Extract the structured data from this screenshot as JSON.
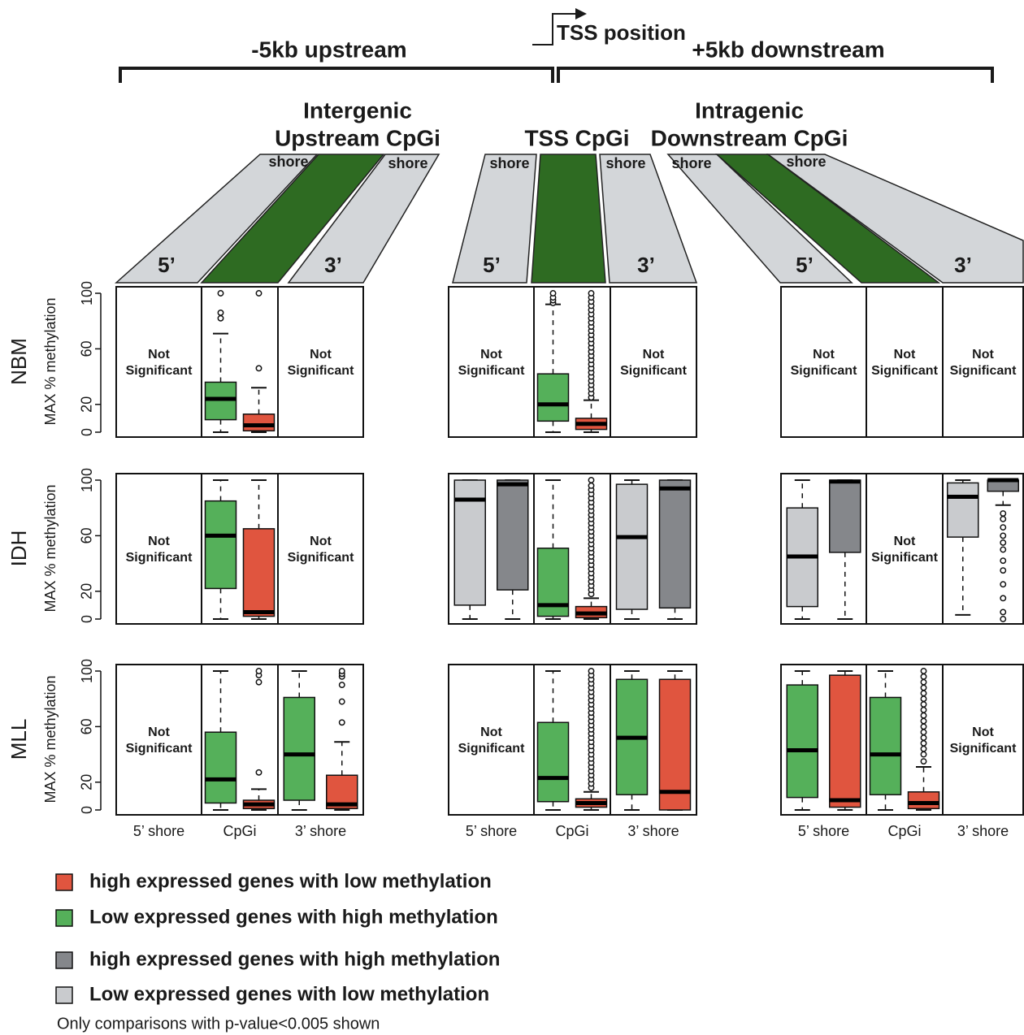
{
  "header": {
    "upstream": "-5kb upstream",
    "tss_position": "TSS position",
    "downstream": "+5kb downstream",
    "regions": [
      {
        "lines": [
          "Intergenic",
          "Upstream CpGi"
        ]
      },
      {
        "lines": [
          "TSS CpGi"
        ]
      },
      {
        "lines": [
          "Intragenic",
          "Downstream CpGi"
        ]
      }
    ],
    "shore": "shore",
    "five_prime": "5’",
    "three_prime": "3’"
  },
  "chart_data": {
    "type": "box",
    "ylabel": "MAX % methylation",
    "ylim": [
      0,
      100
    ],
    "yticks": [
      0,
      20,
      60,
      100
    ],
    "categories": [
      "5’ shore",
      "CpGi",
      "3’ shore"
    ],
    "not_significant": [
      "Not",
      "Significant"
    ],
    "series": [
      {
        "name": "high expressed genes with low methylation",
        "color": "#e0553f"
      },
      {
        "name": "Low expressed genes with high methylation",
        "color": "#55b05a"
      },
      {
        "name": "high expressed genes with high methylation",
        "color": "#85878b"
      },
      {
        "name": "Low expressed genes with low methylation",
        "color": "#c9cbce"
      }
    ],
    "rows": [
      {
        "name": "NBM",
        "panels": [
          {
            "sections": [
              null,
              {
                "boxes": [
                  {
                    "series": 1,
                    "stats": [
                      0,
                      9,
                      24,
                      36,
                      71
                    ],
                    "outliers": [
                      82,
                      86,
                      100
                    ]
                  },
                  {
                    "series": 0,
                    "stats": [
                      0,
                      1,
                      5,
                      13,
                      32
                    ],
                    "outliers": [
                      46,
                      100
                    ]
                  }
                ]
              },
              null
            ]
          },
          {
            "sections": [
              null,
              {
                "boxes": [
                  {
                    "series": 1,
                    "stats": [
                      0,
                      8,
                      20,
                      42,
                      92
                    ],
                    "outliers": [
                      93,
                      95,
                      97,
                      100
                    ]
                  },
                  {
                    "series": 0,
                    "stats": [
                      0,
                      2,
                      6,
                      10,
                      23
                    ],
                    "outliers": [
                      25,
                      28,
                      31,
                      34,
                      37,
                      40,
                      43,
                      46,
                      49,
                      52,
                      55,
                      58,
                      61,
                      64,
                      67,
                      70,
                      73,
                      76,
                      79,
                      82,
                      85,
                      88,
                      91,
                      94,
                      97,
                      100
                    ]
                  }
                ]
              },
              null
            ]
          },
          {
            "sections": [
              null,
              null,
              null
            ]
          }
        ]
      },
      {
        "name": "IDH",
        "panels": [
          {
            "sections": [
              null,
              {
                "boxes": [
                  {
                    "series": 1,
                    "stats": [
                      0,
                      22,
                      60,
                      85,
                      100
                    ],
                    "outliers": []
                  },
                  {
                    "series": 0,
                    "stats": [
                      0,
                      2,
                      5,
                      65,
                      100
                    ],
                    "outliers": []
                  }
                ]
              },
              null
            ]
          },
          {
            "sections": [
              {
                "boxes": [
                  {
                    "series": 3,
                    "stats": [
                      0,
                      10,
                      86,
                      100,
                      100
                    ],
                    "outliers": []
                  },
                  {
                    "series": 2,
                    "stats": [
                      0,
                      21,
                      97,
                      100,
                      100
                    ],
                    "outliers": []
                  }
                ]
              },
              {
                "boxes": [
                  {
                    "series": 1,
                    "stats": [
                      0,
                      2,
                      10,
                      51,
                      100
                    ],
                    "outliers": []
                  },
                  {
                    "series": 0,
                    "stats": [
                      0,
                      1,
                      4,
                      9,
                      15
                    ],
                    "outliers": [
                      18,
                      21,
                      24,
                      27,
                      30,
                      33,
                      36,
                      39,
                      42,
                      45,
                      48,
                      51,
                      54,
                      57,
                      60,
                      63,
                      66,
                      69,
                      72,
                      75,
                      78,
                      81,
                      84,
                      87,
                      90,
                      93,
                      96,
                      100
                    ]
                  }
                ]
              },
              {
                "boxes": [
                  {
                    "series": 3,
                    "stats": [
                      0,
                      7,
                      59,
                      97,
                      100
                    ],
                    "outliers": []
                  },
                  {
                    "series": 2,
                    "stats": [
                      0,
                      8,
                      94,
                      100,
                      100
                    ],
                    "outliers": []
                  }
                ]
              }
            ]
          },
          {
            "sections": [
              {
                "boxes": [
                  {
                    "series": 3,
                    "stats": [
                      0,
                      9,
                      45,
                      80,
                      100
                    ],
                    "outliers": []
                  },
                  {
                    "series": 2,
                    "stats": [
                      0,
                      48,
                      99,
                      100,
                      100
                    ],
                    "outliers": []
                  }
                ]
              },
              null,
              {
                "boxes": [
                  {
                    "series": 3,
                    "stats": [
                      3,
                      59,
                      88,
                      98,
                      100
                    ],
                    "outliers": []
                  },
                  {
                    "series": 2,
                    "stats": [
                      82,
                      92,
                      100,
                      100,
                      100
                    ],
                    "outliers": [
                      76,
                      72,
                      66,
                      60,
                      55,
                      50,
                      42,
                      35,
                      25,
                      15,
                      5,
                      0
                    ]
                  }
                ]
              }
            ]
          }
        ]
      },
      {
        "name": "MLL",
        "panels": [
          {
            "sections": [
              null,
              {
                "boxes": [
                  {
                    "series": 1,
                    "stats": [
                      0,
                      5,
                      22,
                      56,
                      100
                    ],
                    "outliers": []
                  },
                  {
                    "series": 0,
                    "stats": [
                      0,
                      1,
                      4,
                      7,
                      15
                    ],
                    "outliers": [
                      27,
                      92,
                      97,
                      100
                    ]
                  }
                ]
              },
              {
                "boxes": [
                  {
                    "series": 1,
                    "stats": [
                      0,
                      7,
                      40,
                      81,
                      100
                    ],
                    "outliers": []
                  },
                  {
                    "series": 0,
                    "stats": [
                      0,
                      1,
                      4,
                      25,
                      49
                    ],
                    "outliers": [
                      63,
                      78,
                      90,
                      96,
                      98,
                      100
                    ]
                  }
                ]
              }
            ]
          },
          {
            "sections": [
              null,
              {
                "boxes": [
                  {
                    "series": 1,
                    "stats": [
                      0,
                      6,
                      23,
                      63,
                      100
                    ],
                    "outliers": []
                  },
                  {
                    "series": 0,
                    "stats": [
                      0,
                      2,
                      5,
                      8,
                      13
                    ],
                    "outliers": [
                      16,
                      19,
                      22,
                      25,
                      28,
                      31,
                      34,
                      37,
                      40,
                      43,
                      46,
                      49,
                      52,
                      55,
                      58,
                      61,
                      64,
                      67,
                      70,
                      73,
                      76,
                      79,
                      82,
                      85,
                      88,
                      91,
                      94,
                      97,
                      100
                    ]
                  }
                ]
              },
              {
                "boxes": [
                  {
                    "series": 1,
                    "stats": [
                      0,
                      11,
                      52,
                      94,
                      100
                    ],
                    "outliers": []
                  },
                  {
                    "series": 0,
                    "stats": [
                      0,
                      0,
                      13,
                      94,
                      100
                    ],
                    "outliers": []
                  }
                ]
              }
            ]
          },
          {
            "sections": [
              {
                "boxes": [
                  {
                    "series": 1,
                    "stats": [
                      0,
                      9,
                      43,
                      90,
                      100
                    ],
                    "outliers": []
                  },
                  {
                    "series": 0,
                    "stats": [
                      0,
                      2,
                      7,
                      97,
                      100
                    ],
                    "outliers": []
                  }
                ]
              },
              {
                "boxes": [
                  {
                    "series": 1,
                    "stats": [
                      0,
                      11,
                      40,
                      81,
                      100
                    ],
                    "outliers": []
                  },
                  {
                    "series": 0,
                    "stats": [
                      0,
                      1,
                      5,
                      13,
                      31
                    ],
                    "outliers": [
                      35,
                      40,
                      44,
                      48,
                      52,
                      56,
                      60,
                      64,
                      68,
                      72,
                      76,
                      80,
                      84,
                      88,
                      92,
                      96,
                      100
                    ]
                  }
                ]
              },
              null
            ]
          }
        ]
      }
    ],
    "note": "Only comparisons with p-value<0.005  shown"
  }
}
